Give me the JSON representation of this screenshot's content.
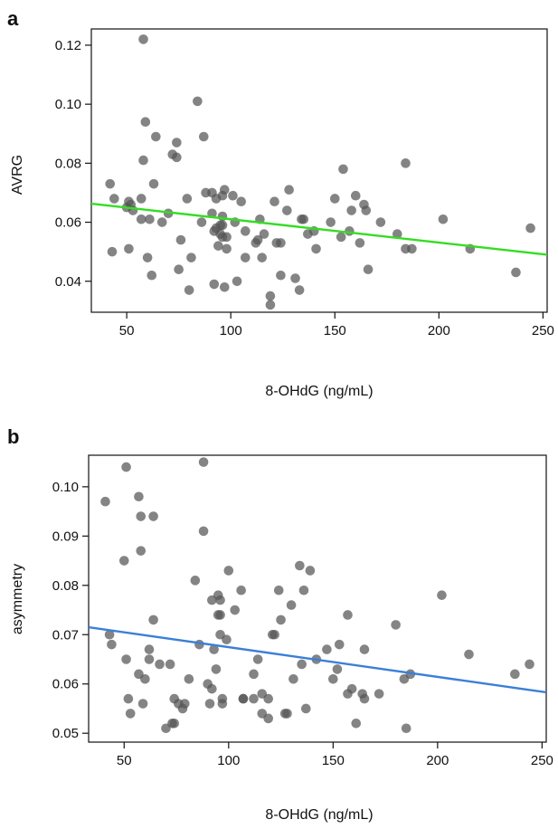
{
  "chart_data": [
    {
      "panel_label": "a",
      "type": "scatter",
      "xlabel": "8-OHdG (ng/mL)",
      "ylabel": "AVRG",
      "xlim": [
        33,
        252
      ],
      "ylim": [
        0.0295,
        0.1255
      ],
      "x_ticks": [
        50,
        100,
        150,
        200,
        250
      ],
      "y_ticks": [
        0.04,
        0.06,
        0.08,
        0.1,
        0.12
      ],
      "x_tick_labels": [
        "50",
        "100",
        "150",
        "200",
        "250"
      ],
      "y_tick_labels": [
        "0.04",
        "0.06",
        "0.08",
        "0.10",
        "0.12"
      ],
      "point_color": "#555555",
      "line_color": "#33dd22",
      "fit_line": [
        [
          33,
          0.0663
        ],
        [
          252,
          0.049
        ]
      ],
      "points": [
        [
          42,
          0.073
        ],
        [
          43,
          0.05
        ],
        [
          44,
          0.068
        ],
        [
          50,
          0.065
        ],
        [
          51,
          0.051
        ],
        [
          51,
          0.067
        ],
        [
          52,
          0.066
        ],
        [
          53,
          0.064
        ],
        [
          57,
          0.061
        ],
        [
          57,
          0.068
        ],
        [
          58,
          0.081
        ],
        [
          58,
          0.122
        ],
        [
          59,
          0.094
        ],
        [
          60,
          0.048
        ],
        [
          61,
          0.061
        ],
        [
          62,
          0.042
        ],
        [
          63,
          0.073
        ],
        [
          64,
          0.089
        ],
        [
          67,
          0.06
        ],
        [
          70,
          0.063
        ],
        [
          72,
          0.083
        ],
        [
          74,
          0.087
        ],
        [
          74,
          0.082
        ],
        [
          75,
          0.044
        ],
        [
          76,
          0.054
        ],
        [
          79,
          0.068
        ],
        [
          80,
          0.037
        ],
        [
          81,
          0.048
        ],
        [
          84,
          0.101
        ],
        [
          86,
          0.06
        ],
        [
          87,
          0.089
        ],
        [
          88,
          0.07
        ],
        [
          91,
          0.07
        ],
        [
          91,
          0.063
        ],
        [
          92,
          0.039
        ],
        [
          92,
          0.057
        ],
        [
          93,
          0.068
        ],
        [
          93,
          0.058
        ],
        [
          94,
          0.052
        ],
        [
          95,
          0.059
        ],
        [
          95,
          0.056
        ],
        [
          96,
          0.069
        ],
        [
          96,
          0.059
        ],
        [
          96,
          0.062
        ],
        [
          96,
          0.055
        ],
        [
          97,
          0.071
        ],
        [
          97,
          0.038
        ],
        [
          98,
          0.051
        ],
        [
          98,
          0.055
        ],
        [
          101,
          0.069
        ],
        [
          102,
          0.06
        ],
        [
          103,
          0.04
        ],
        [
          105,
          0.067
        ],
        [
          107,
          0.057
        ],
        [
          107,
          0.048
        ],
        [
          112,
          0.053
        ],
        [
          113,
          0.054
        ],
        [
          114,
          0.061
        ],
        [
          115,
          0.048
        ],
        [
          116,
          0.056
        ],
        [
          119,
          0.035
        ],
        [
          119,
          0.032
        ],
        [
          121,
          0.067
        ],
        [
          122,
          0.053
        ],
        [
          124,
          0.042
        ],
        [
          124,
          0.053
        ],
        [
          127,
          0.064
        ],
        [
          128,
          0.071
        ],
        [
          131,
          0.041
        ],
        [
          133,
          0.037
        ],
        [
          134,
          0.061
        ],
        [
          135,
          0.061
        ],
        [
          137,
          0.056
        ],
        [
          140,
          0.057
        ],
        [
          141,
          0.051
        ],
        [
          148,
          0.06
        ],
        [
          150,
          0.068
        ],
        [
          153,
          0.055
        ],
        [
          154,
          0.078
        ],
        [
          157,
          0.057
        ],
        [
          158,
          0.064
        ],
        [
          160,
          0.069
        ],
        [
          162,
          0.053
        ],
        [
          164,
          0.066
        ],
        [
          165,
          0.064
        ],
        [
          166,
          0.044
        ],
        [
          172,
          0.06
        ],
        [
          180,
          0.056
        ],
        [
          184,
          0.051
        ],
        [
          184,
          0.08
        ],
        [
          187,
          0.051
        ],
        [
          202,
          0.061
        ],
        [
          215,
          0.051
        ],
        [
          237,
          0.043
        ],
        [
          244,
          0.058
        ]
      ]
    },
    {
      "panel_label": "b",
      "type": "scatter",
      "xlabel": "8-OHdG (ng/mL)",
      "ylabel": "asymmetry",
      "xlim": [
        33,
        252
      ],
      "ylim": [
        0.0482,
        0.1064
      ],
      "x_ticks": [
        50,
        100,
        150,
        200,
        250
      ],
      "y_ticks": [
        0.05,
        0.06,
        0.07,
        0.08,
        0.09,
        0.1
      ],
      "x_tick_labels": [
        "50",
        "100",
        "150",
        "200",
        "250"
      ],
      "y_tick_labels": [
        "0.05",
        "0.06",
        "0.07",
        "0.08",
        "0.09",
        "0.10"
      ],
      "point_color": "#555555",
      "line_color": "#3b7fd8",
      "fit_line": [
        [
          33,
          0.0715
        ],
        [
          252,
          0.0583
        ]
      ],
      "points": [
        [
          41,
          0.097
        ],
        [
          43,
          0.07
        ],
        [
          44,
          0.068
        ],
        [
          50,
          0.085
        ],
        [
          51,
          0.065
        ],
        [
          51,
          0.104
        ],
        [
          52,
          0.057
        ],
        [
          53,
          0.054
        ],
        [
          57,
          0.098
        ],
        [
          57,
          0.062
        ],
        [
          58,
          0.087
        ],
        [
          58,
          0.094
        ],
        [
          59,
          0.056
        ],
        [
          60,
          0.061
        ],
        [
          62,
          0.065
        ],
        [
          62,
          0.067
        ],
        [
          64,
          0.094
        ],
        [
          64,
          0.073
        ],
        [
          67,
          0.064
        ],
        [
          70,
          0.051
        ],
        [
          72,
          0.064
        ],
        [
          73,
          0.052
        ],
        [
          74,
          0.057
        ],
        [
          74,
          0.052
        ],
        [
          76,
          0.056
        ],
        [
          78,
          0.055
        ],
        [
          79,
          0.056
        ],
        [
          81,
          0.061
        ],
        [
          84,
          0.081
        ],
        [
          86,
          0.068
        ],
        [
          88,
          0.091
        ],
        [
          88,
          0.105
        ],
        [
          90,
          0.06
        ],
        [
          91,
          0.056
        ],
        [
          92,
          0.077
        ],
        [
          92,
          0.059
        ],
        [
          93,
          0.067
        ],
        [
          94,
          0.063
        ],
        [
          95,
          0.074
        ],
        [
          95,
          0.078
        ],
        [
          96,
          0.077
        ],
        [
          96,
          0.07
        ],
        [
          96,
          0.074
        ],
        [
          97,
          0.057
        ],
        [
          97,
          0.056
        ],
        [
          99,
          0.069
        ],
        [
          100,
          0.083
        ],
        [
          103,
          0.075
        ],
        [
          106,
          0.079
        ],
        [
          107,
          0.057
        ],
        [
          107,
          0.057
        ],
        [
          112,
          0.062
        ],
        [
          112,
          0.057
        ],
        [
          114,
          0.065
        ],
        [
          116,
          0.054
        ],
        [
          116,
          0.058
        ],
        [
          119,
          0.053
        ],
        [
          119,
          0.057
        ],
        [
          121,
          0.07
        ],
        [
          122,
          0.07
        ],
        [
          124,
          0.079
        ],
        [
          125,
          0.073
        ],
        [
          127,
          0.054
        ],
        [
          128,
          0.054
        ],
        [
          130,
          0.076
        ],
        [
          131,
          0.061
        ],
        [
          134,
          0.084
        ],
        [
          135,
          0.064
        ],
        [
          136,
          0.079
        ],
        [
          137,
          0.055
        ],
        [
          139,
          0.083
        ],
        [
          142,
          0.065
        ],
        [
          147,
          0.067
        ],
        [
          150,
          0.061
        ],
        [
          152,
          0.063
        ],
        [
          153,
          0.068
        ],
        [
          157,
          0.074
        ],
        [
          157,
          0.058
        ],
        [
          159,
          0.059
        ],
        [
          161,
          0.052
        ],
        [
          164,
          0.058
        ],
        [
          165,
          0.067
        ],
        [
          165,
          0.057
        ],
        [
          172,
          0.058
        ],
        [
          180,
          0.072
        ],
        [
          184,
          0.061
        ],
        [
          185,
          0.051
        ],
        [
          187,
          0.062
        ],
        [
          202,
          0.078
        ],
        [
          215,
          0.066
        ],
        [
          237,
          0.062
        ],
        [
          244,
          0.064
        ]
      ]
    }
  ]
}
